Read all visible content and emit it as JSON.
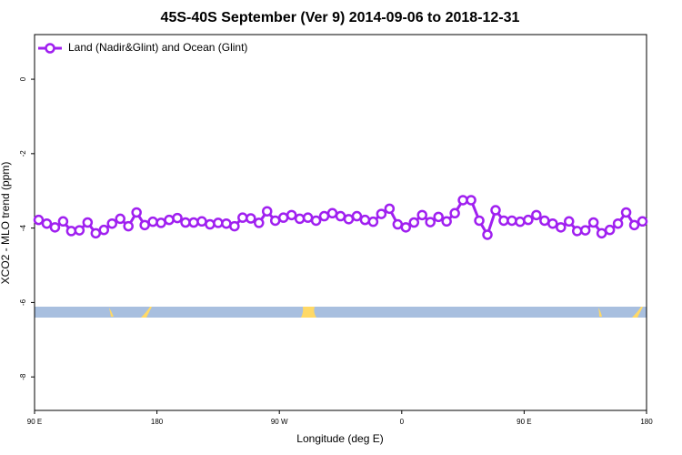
{
  "chart_data": {
    "type": "line",
    "title": "45S-40S September (Ver 9)   2014-09-06 to 2018-12-31",
    "x_label": "Longitude (deg E)",
    "y_label": "XCO2 - MLO trend (ppm)",
    "x": [
      93,
      99,
      105,
      111,
      117,
      123,
      129,
      135,
      141,
      147,
      153,
      159,
      165,
      171,
      177,
      183,
      189,
      195,
      201,
      207,
      213,
      219,
      225,
      231,
      237,
      243,
      249,
      255,
      261,
      267,
      273,
      279,
      285,
      291,
      297,
      303,
      309,
      315,
      321,
      327,
      333,
      339,
      345,
      351,
      357,
      363,
      369,
      375,
      381,
      387,
      393,
      399,
      405,
      411,
      417,
      423,
      429,
      435,
      441,
      447,
      453,
      459,
      465,
      471,
      477,
      483,
      489,
      495,
      501,
      507,
      513,
      519,
      525,
      531,
      537
    ],
    "series": [
      {
        "name": "Land (Nadir&Glint) and Ocean (Glint)",
        "color": "#a020f0",
        "values": [
          -3.78,
          -3.88,
          -3.98,
          -3.82,
          -4.08,
          -4.06,
          -3.85,
          -4.14,
          -4.05,
          -3.88,
          -3.75,
          -3.95,
          -3.58,
          -3.92,
          -3.83,
          -3.86,
          -3.78,
          -3.73,
          -3.85,
          -3.85,
          -3.82,
          -3.9,
          -3.86,
          -3.88,
          -3.95,
          -3.72,
          -3.74,
          -3.86,
          -3.55,
          -3.8,
          -3.72,
          -3.65,
          -3.75,
          -3.72,
          -3.8,
          -3.68,
          -3.6,
          -3.68,
          -3.76,
          -3.68,
          -3.78,
          -3.83,
          -3.62,
          -3.48,
          -3.9,
          -3.98,
          -3.85,
          -3.65,
          -3.84,
          -3.7,
          -3.82,
          -3.6,
          -3.25,
          -3.25,
          -3.8,
          -4.18,
          -3.52,
          -3.8,
          -3.8,
          -3.83,
          -3.78,
          -3.65,
          -3.8,
          -3.88,
          -3.98,
          -3.82,
          -4.08,
          -4.06,
          -3.85,
          -4.14,
          -4.05,
          -3.88,
          -3.58,
          -3.92,
          -3.82
        ]
      }
    ],
    "xlim": [
      90,
      540
    ],
    "xticks": [
      {
        "value": 90,
        "label": "90 E"
      },
      180,
      {
        "value": 270,
        "label": "90 W"
      },
      {
        "value": 360,
        "label": "0"
      },
      {
        "value": 450,
        "label": "90 E"
      },
      {
        "value": 540,
        "label": "180"
      }
    ],
    "ylim": [
      -8.9,
      1.2
    ],
    "yticks": [
      0,
      -2,
      -4,
      -6,
      -8
    ],
    "legend": "top-left"
  }
}
